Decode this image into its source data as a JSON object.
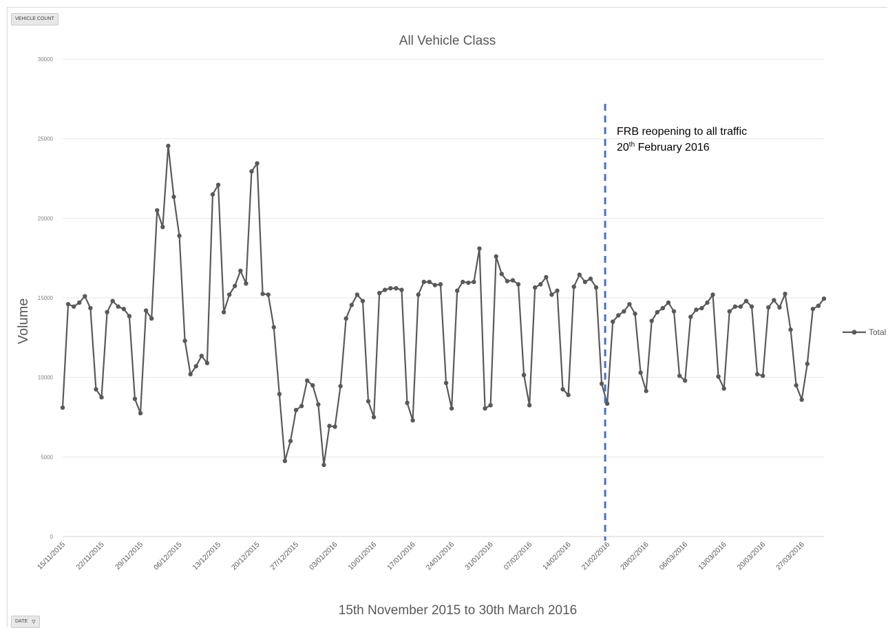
{
  "buttons": {
    "vehicle_count": "VEHICLE COUNT",
    "date": "DATE"
  },
  "chart_data": {
    "type": "line",
    "title": "All Vehicle Class",
    "xlabel": "15th November 2015 to 30th March 2016",
    "ylabel": "Volume",
    "ylim": [
      0,
      30000
    ],
    "yticks": [
      0,
      5000,
      10000,
      15000,
      20000,
      25000,
      30000
    ],
    "grid": true,
    "legend": "right",
    "xtick_labels": [
      "15/11/2015",
      "22/11/2015",
      "29/11/2015",
      "06/12/2015",
      "13/12/2015",
      "20/12/2015",
      "27/12/2015",
      "03/01/2016",
      "10/01/2016",
      "17/01/2016",
      "24/01/2016",
      "31/01/2016",
      "07/02/2016",
      "14/02/2016",
      "21/02/2016",
      "28/02/2016",
      "06/03/2016",
      "13/03/2016",
      "20/03/2016",
      "27/03/2016"
    ],
    "annotation": {
      "line1": "FRB reopening to all traffic",
      "line2_day": "20",
      "line2_sup": "th",
      "line2_rest": " February 2016",
      "at_date": "20/02/2016"
    },
    "colors": {
      "series": "#595959",
      "annotation": "#4472c4"
    },
    "series": [
      {
        "name": "Total",
        "start_date": "15/11/2015",
        "values": [
          8100,
          14600,
          14450,
          14700,
          15100,
          14350,
          9250,
          8750,
          14100,
          14800,
          14450,
          14300,
          13850,
          8650,
          7750,
          14200,
          13700,
          20500,
          19450,
          24550,
          21350,
          18900,
          12300,
          10200,
          10700,
          11350,
          10900,
          21500,
          22100,
          14100,
          15200,
          15750,
          16700,
          15900,
          22950,
          23450,
          15250,
          15200,
          13150,
          8950,
          4750,
          6000,
          7950,
          8200,
          9800,
          9500,
          8300,
          4500,
          6950,
          6900,
          9450,
          13700,
          14550,
          15200,
          14800,
          8500,
          7500,
          15300,
          15500,
          15600,
          15600,
          15500,
          8400,
          7300,
          15200,
          16000,
          16000,
          15800,
          15850,
          9650,
          8050,
          15450,
          16000,
          15950,
          16000,
          18100,
          8050,
          8250,
          17600,
          16500,
          16050,
          16100,
          15850,
          10150,
          8250,
          15650,
          15850,
          16300,
          15200,
          15450,
          9250,
          8900,
          15700,
          16450,
          16000,
          16200,
          15650,
          9600,
          8350,
          13500,
          13900,
          14150,
          14600,
          14000,
          10300,
          9150,
          13550,
          14100,
          14350,
          14700,
          14150,
          10100,
          9800,
          13800,
          14250,
          14350,
          14700,
          15200,
          10050,
          9300,
          14150,
          14450,
          14450,
          14800,
          14450,
          10200,
          10100,
          14400,
          14850,
          14400,
          15250,
          13000,
          9500,
          8600,
          10850,
          14300,
          14500,
          14950
        ]
      }
    ]
  }
}
